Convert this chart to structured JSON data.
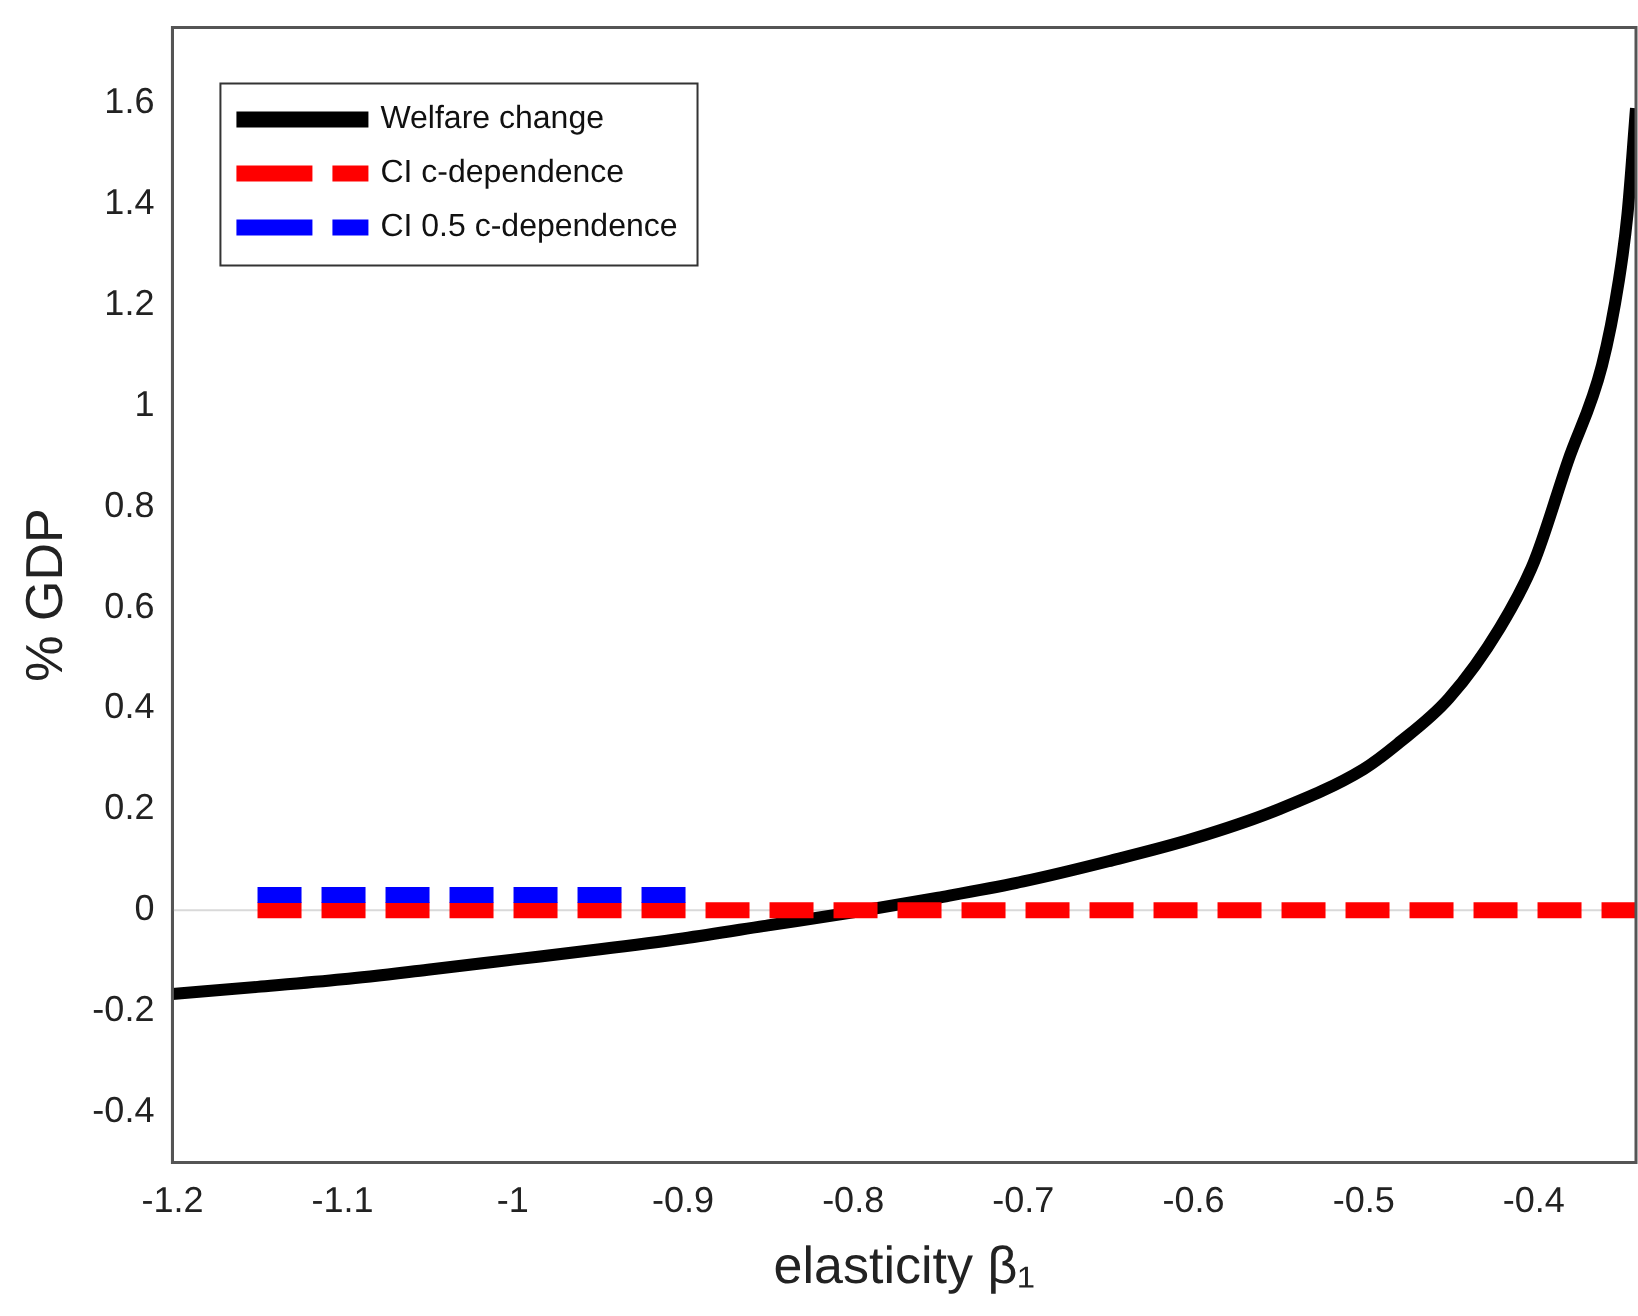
{
  "chart_data": {
    "type": "line",
    "xlabel": "elasticity β₁",
    "ylabel": "% GDP",
    "xlim": [
      -1.2,
      -0.34
    ],
    "xticks": [
      -1.2,
      -1.1,
      -1,
      -0.9,
      -0.8,
      -0.7,
      -0.6,
      -0.5,
      -0.4
    ],
    "ylim": [
      -0.5,
      1.75
    ],
    "yticks": [
      -0.4,
      -0.2,
      0,
      0.2,
      0.4,
      0.6,
      0.8,
      1,
      1.2,
      1.4,
      1.6
    ],
    "legend": "top left",
    "grid": false,
    "marker": "none",
    "ref_lines": [
      {
        "axis": "y",
        "value": 0,
        "color": "#d9d9d9"
      }
    ],
    "series": [
      {
        "name": "Welfare change",
        "color": "#000000",
        "line_style": "solid",
        "x": [
          -1.2,
          -1.15,
          -1.1,
          -1.05,
          -1,
          -0.95,
          -0.9,
          -0.85,
          -0.8,
          -0.75,
          -0.7,
          -0.65,
          -0.6,
          -0.55,
          -0.5,
          -0.48,
          -0.45,
          -0.42,
          -0.4,
          -0.38,
          -0.36,
          -0.35,
          -0.345,
          -0.34
        ],
        "values": [
          -0.166,
          -0.152,
          -0.137,
          -0.118,
          -0.098,
          -0.078,
          -0.056,
          -0.03,
          -0.004,
          0.025,
          0.057,
          0.097,
          0.142,
          0.2,
          0.28,
          0.33,
          0.42,
          0.56,
          0.69,
          0.89,
          1.08,
          1.25,
          1.38,
          1.59
        ]
      },
      {
        "name": "CI c-dependence",
        "color": "#ff0000",
        "line_style": "dashed",
        "x": [
          -1.15,
          -0.34
        ],
        "values": [
          0,
          0
        ]
      },
      {
        "name": "CI 0.5 c-dependence",
        "color": "#0000ff",
        "line_style": "dashed",
        "x": [
          -1.15,
          -0.89
        ],
        "values": [
          0.03,
          0.03
        ]
      }
    ]
  }
}
